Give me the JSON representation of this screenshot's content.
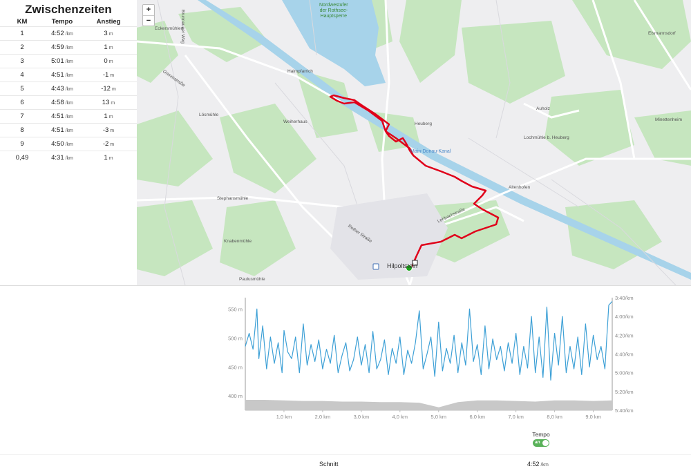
{
  "splits": {
    "title": "Zwischenzeiten",
    "headers": {
      "km": "KM",
      "pace": "Tempo",
      "elev": "Anstieg"
    },
    "pace_unit": "/km",
    "elev_unit": "m",
    "rows": [
      {
        "km": "1",
        "pace": "4:52",
        "elev": "3"
      },
      {
        "km": "2",
        "pace": "4:59",
        "elev": "1"
      },
      {
        "km": "3",
        "pace": "5:01",
        "elev": "0"
      },
      {
        "km": "4",
        "pace": "4:51",
        "elev": "-1"
      },
      {
        "km": "5",
        "pace": "4:43",
        "elev": "-12"
      },
      {
        "km": "6",
        "pace": "4:58",
        "elev": "13"
      },
      {
        "km": "7",
        "pace": "4:51",
        "elev": "1"
      },
      {
        "km": "8",
        "pace": "4:51",
        "elev": "-3"
      },
      {
        "km": "9",
        "pace": "4:50",
        "elev": "-2"
      },
      {
        "km": "0,49",
        "pace": "4:31",
        "elev": "1"
      }
    ]
  },
  "map": {
    "zoom_in": "+",
    "zoom_out": "−",
    "labels": [
      {
        "text": "Nordwestufer\nder Rothsee-\nHauptsperre",
        "cls": "green",
        "pos": "nw-shore"
      },
      {
        "text": "Eckersmühlen",
        "cls": "",
        "pos": "eckersmuehlen"
      },
      {
        "text": "Brunnaueer Weg",
        "cls": "",
        "pos": "brunnauer"
      },
      {
        "text": "Grimmstraße",
        "cls": "",
        "pos": "grimm"
      },
      {
        "text": "Haimpfarrich",
        "cls": "",
        "pos": "haimpfarrich"
      },
      {
        "text": "Lösmühle",
        "cls": "",
        "pos": "loesmuehle"
      },
      {
        "text": "Weiherhaus",
        "cls": "",
        "pos": "weiherhaus"
      },
      {
        "text": "Heuberg",
        "cls": "",
        "pos": "heuberg"
      },
      {
        "text": "Main-Donau-Kanal",
        "cls": "blue",
        "pos": "kanal"
      },
      {
        "text": "Auholz",
        "cls": "",
        "pos": "auholz"
      },
      {
        "text": "Lochmühle b. Heuberg",
        "cls": "",
        "pos": "lochmuehle"
      },
      {
        "text": "Elsmannsdorf",
        "cls": "",
        "pos": "elsmannsdorf"
      },
      {
        "text": "Minettenheim",
        "cls": "",
        "pos": "minettenheim"
      },
      {
        "text": "Altenhofen",
        "cls": "",
        "pos": "altenhofen"
      },
      {
        "text": "Stephansmühle",
        "cls": "",
        "pos": "stephansmuehle"
      },
      {
        "text": "Lohbachstraße",
        "cls": "",
        "pos": "lohbach"
      },
      {
        "text": "Rother Straße",
        "cls": "",
        "pos": "rother"
      },
      {
        "text": "Knabenmühle",
        "cls": "",
        "pos": "knabenmuehle"
      },
      {
        "text": "Hilpoltstein",
        "cls": "big",
        "pos": "hilpoltstein"
      },
      {
        "text": "Paulusmühle",
        "cls": "",
        "pos": "paulusmuehle"
      }
    ]
  },
  "chart": {
    "toggle_label": "Tempo",
    "toggle_state": "an",
    "avg_label": "Schnitt",
    "avg_value": "4:52",
    "avg_unit": "/km"
  },
  "colors": {
    "route": "#e0001a",
    "pace": "#3da0d6",
    "elevation": "#c8c8c8",
    "start": "#1aa51a"
  },
  "chart_data": {
    "type": "line",
    "x_ticks": [
      "1,0 km",
      "2,0 km",
      "3,0 km",
      "4,0 km",
      "5,0 km",
      "6,0 km",
      "7,0 km",
      "8,0 km",
      "9,0 km"
    ],
    "xlim": [
      0,
      9.49
    ],
    "y_left_ticks": [
      "550 m",
      "500 m",
      "450 m",
      "400 m"
    ],
    "y_left_lim": [
      375,
      570
    ],
    "y_right_ticks": [
      "3:40/km",
      "4:00/km",
      "4:20/km",
      "4:40/km",
      "5:00/km",
      "5:20/km",
      "5:40/km"
    ],
    "y_right_lim_seconds": [
      220,
      340
    ],
    "series": [
      {
        "kind": "pace",
        "x": [
          0,
          0.1,
          0.2,
          0.3,
          0.35,
          0.45,
          0.55,
          0.65,
          0.75,
          0.85,
          0.95,
          1.0,
          1.1,
          1.2,
          1.3,
          1.4,
          1.5,
          1.6,
          1.7,
          1.8,
          1.9,
          2.0,
          2.1,
          2.2,
          2.3,
          2.4,
          2.5,
          2.6,
          2.7,
          2.8,
          2.9,
          3.0,
          3.1,
          3.2,
          3.3,
          3.4,
          3.5,
          3.6,
          3.7,
          3.8,
          3.9,
          4.0,
          4.1,
          4.2,
          4.3,
          4.4,
          4.5,
          4.6,
          4.7,
          4.8,
          4.9,
          5.0,
          5.1,
          5.2,
          5.3,
          5.4,
          5.5,
          5.6,
          5.7,
          5.8,
          5.9,
          6.0,
          6.1,
          6.2,
          6.3,
          6.4,
          6.5,
          6.6,
          6.7,
          6.8,
          6.9,
          7.0,
          7.1,
          7.2,
          7.3,
          7.4,
          7.5,
          7.6,
          7.7,
          7.8,
          7.9,
          8.0,
          8.1,
          8.2,
          8.3,
          8.4,
          8.5,
          8.6,
          8.7,
          8.8,
          8.9,
          9.0,
          9.1,
          9.2,
          9.3,
          9.4,
          9.49
        ],
        "y": [
          272,
          258,
          275,
          232,
          285,
          250,
          296,
          262,
          290,
          268,
          300,
          255,
          278,
          285,
          262,
          300,
          248,
          292,
          270,
          288,
          265,
          296,
          275,
          290,
          260,
          300,
          282,
          268,
          298,
          286,
          262,
          292,
          270,
          300,
          256,
          296,
          286,
          265,
          302,
          274,
          290,
          262,
          302,
          276,
          290,
          268,
          234,
          296,
          280,
          262,
          304,
          246,
          298,
          274,
          290,
          260,
          300,
          268,
          292,
          232,
          288,
          270,
          302,
          250,
          296,
          264,
          286,
          272,
          298,
          268,
          290,
          258,
          302,
          272,
          295,
          240,
          300,
          262,
          305,
          230,
          308,
          258,
          292,
          240,
          300,
          272,
          296,
          262,
          302,
          248,
          294,
          260,
          286,
          272,
          296,
          228,
          224
        ]
      },
      {
        "kind": "elevation",
        "x": [
          0,
          0.5,
          1.0,
          1.5,
          2.0,
          2.5,
          3.0,
          3.5,
          4.0,
          4.5,
          5.0,
          5.5,
          6.0,
          6.5,
          7.0,
          7.5,
          8.0,
          8.5,
          9.0,
          9.49
        ],
        "y": [
          393,
          393,
          392,
          391,
          391,
          390,
          390,
          389,
          389,
          388,
          380,
          389,
          392,
          392,
          391,
          390,
          392,
          392,
          391,
          392
        ]
      }
    ]
  }
}
